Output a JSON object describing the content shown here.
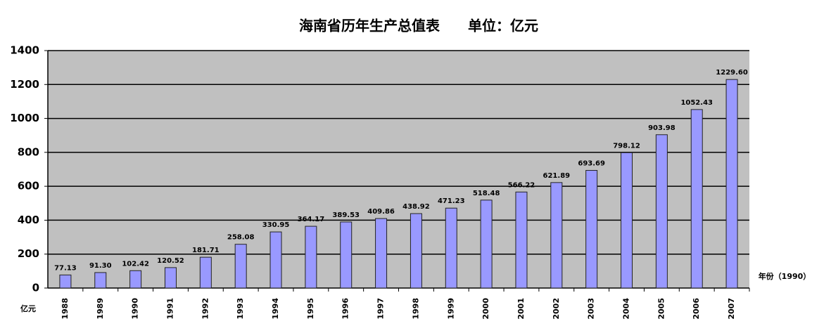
{
  "chart_data": {
    "type": "bar",
    "title": "海南省历年生产总值表　　单位：亿元",
    "y_unit_label": "亿元",
    "x_axis_label": "年份（1990）",
    "categories": [
      "1988",
      "1989",
      "1990",
      "1991",
      "1992",
      "1993",
      "1994",
      "1995",
      "1996",
      "1997",
      "1998",
      "1999",
      "2000",
      "2001",
      "2002",
      "2003",
      "2004",
      "2005",
      "2006",
      "2007"
    ],
    "values": [
      77.13,
      91.3,
      102.42,
      120.52,
      181.71,
      258.08,
      330.95,
      364.17,
      389.53,
      409.86,
      438.92,
      471.23,
      518.48,
      566.22,
      621.89,
      693.69,
      798.12,
      903.98,
      1052.43,
      1229.6
    ],
    "value_labels": [
      "77.13",
      "91.30",
      "102.42",
      "120.52",
      "181.71",
      "258.08",
      "330.95",
      "364.17",
      "389.53",
      "409.86",
      "438.92",
      "471.23",
      "518.48",
      "566.22",
      "621.89",
      "693.69",
      "798.12",
      "903.98",
      "1052.43",
      "1229.60"
    ],
    "color": "#9999ff",
    "ylim": [
      0,
      1400
    ],
    "yticks": [
      0,
      200,
      400,
      600,
      800,
      1000,
      1200,
      1400
    ],
    "grid": true
  }
}
